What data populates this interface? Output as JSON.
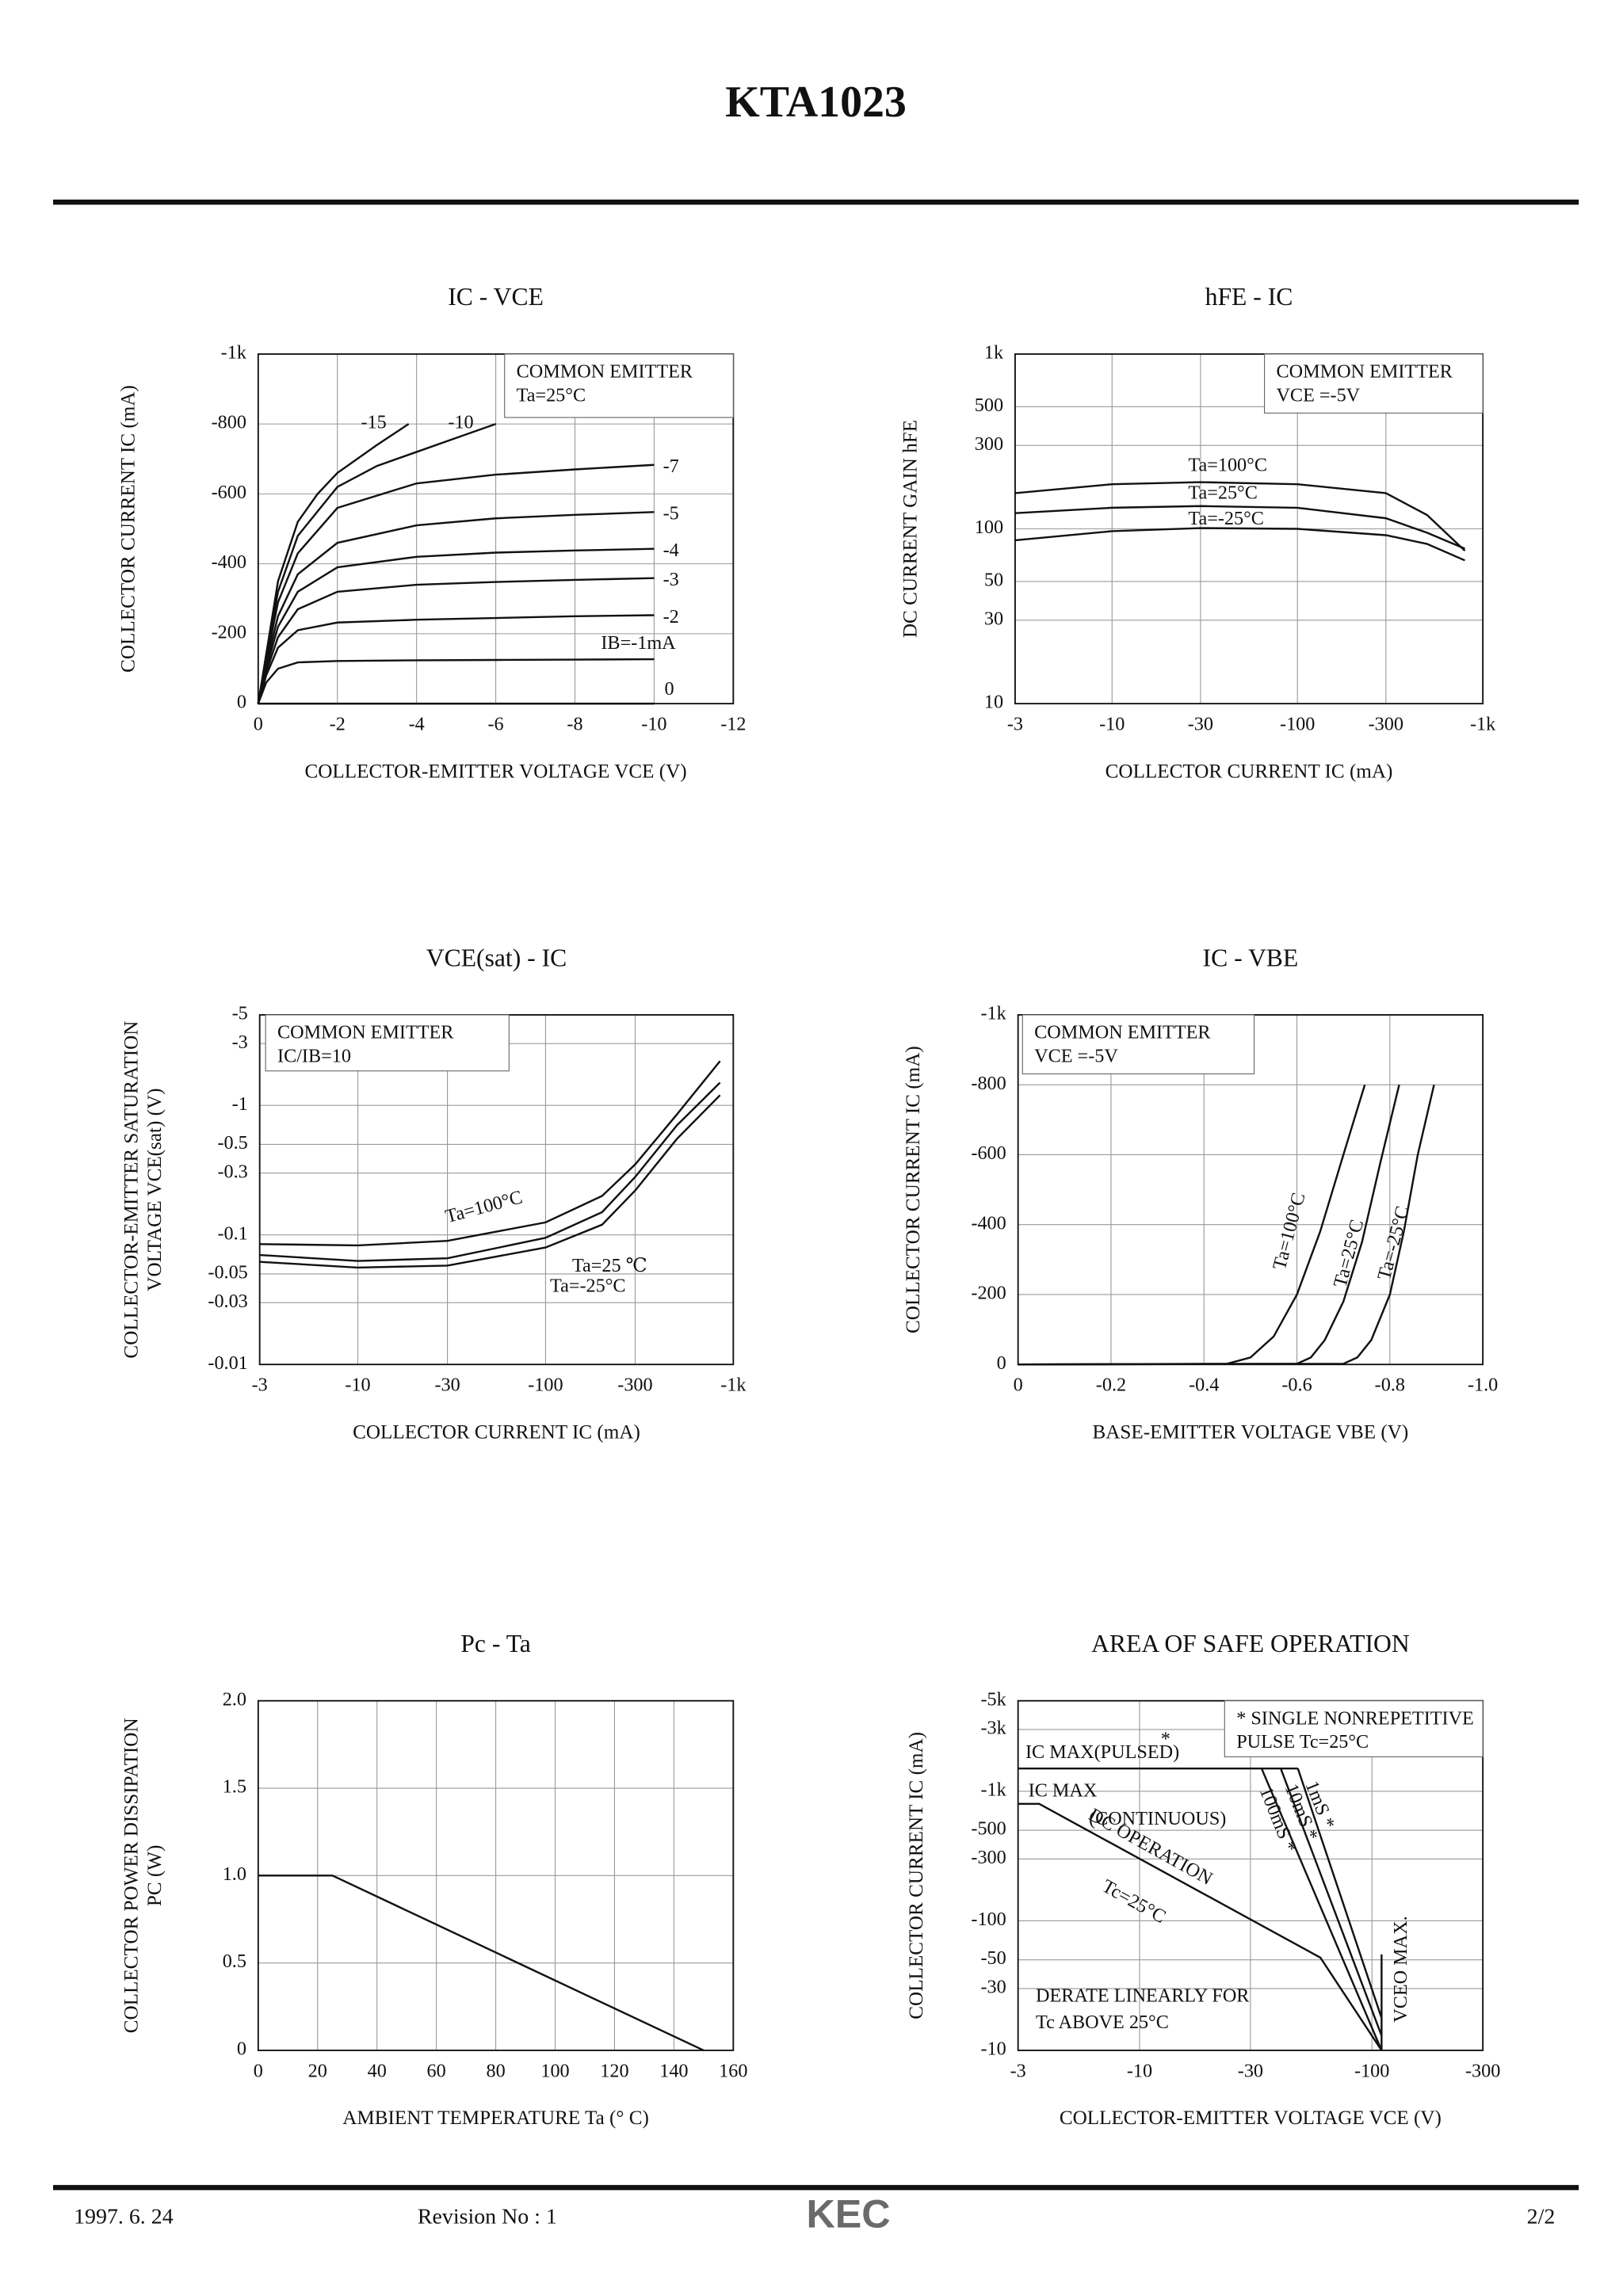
{
  "header": {
    "title": "KTA1023"
  },
  "footer": {
    "date": "1997. 6. 24",
    "revision": "Revision No : 1",
    "logo": "KEC",
    "page": "2/2"
  },
  "chart_data": [
    {
      "type": "line",
      "title": "IC - VCE",
      "xlabel": "COLLECTOR-EMITTER VOLTAGE VCE (V)",
      "ylabel": [
        "COLLECTOR CURRENT IC (mA)"
      ],
      "xscale": "linear",
      "yscale": "linear",
      "xlim": [
        0,
        -12
      ],
      "ylim": [
        0,
        -1000
      ],
      "xticks": [
        0,
        -2,
        -4,
        -6,
        -8,
        -10,
        -12
      ],
      "yticks": [
        0,
        -200,
        -400,
        -600,
        -800,
        {
          "value": -1000,
          "label": "-1k"
        }
      ],
      "grid": true,
      "color": "#111111",
      "notes": [
        "COMMON EMITTER",
        "Ta=25°C"
      ],
      "series": [
        {
          "name": "-15",
          "x": [
            0,
            -0.2,
            -0.5,
            -1,
            -1.5,
            -2,
            -3,
            -3.8
          ],
          "values": [
            0,
            -140,
            -350,
            -520,
            -600,
            -660,
            -740,
            -800
          ]
        },
        {
          "name": "-10",
          "x": [
            0,
            -0.2,
            -0.5,
            -1,
            -2,
            -3,
            -4,
            -5,
            -6
          ],
          "values": [
            0,
            -130,
            -320,
            -480,
            -620,
            -680,
            -720,
            -760,
            -800
          ]
        },
        {
          "name": "-7",
          "x": [
            0,
            -0.2,
            -0.5,
            -1,
            -2,
            -4,
            -6,
            -8,
            -10
          ],
          "values": [
            0,
            -120,
            -290,
            -430,
            -560,
            -630,
            -655,
            -670,
            -683
          ]
        },
        {
          "name": "-5",
          "x": [
            0,
            -0.2,
            -0.5,
            -1,
            -2,
            -4,
            -6,
            -8,
            -10
          ],
          "values": [
            0,
            -110,
            -250,
            -370,
            -460,
            -510,
            -530,
            -540,
            -548
          ]
        },
        {
          "name": "-4",
          "x": [
            0,
            -0.2,
            -0.5,
            -1,
            -2,
            -4,
            -6,
            -8,
            -10
          ],
          "values": [
            0,
            -100,
            -220,
            -320,
            -390,
            -420,
            -432,
            -438,
            -443
          ]
        },
        {
          "name": "-3",
          "x": [
            0,
            -0.2,
            -0.5,
            -1,
            -2,
            -4,
            -6,
            -8,
            -10
          ],
          "values": [
            0,
            -90,
            -190,
            -270,
            -320,
            -340,
            -348,
            -354,
            -359
          ]
        },
        {
          "name": "-2",
          "x": [
            0,
            -0.2,
            -0.5,
            -1,
            -2,
            -4,
            -6,
            -8,
            -10
          ],
          "values": [
            0,
            -80,
            -160,
            -210,
            -232,
            -240,
            -245,
            -250,
            -253
          ]
        },
        {
          "name": "IB=-1mA",
          "x": [
            0,
            -0.2,
            -0.5,
            -1,
            -2,
            -4,
            -6,
            -8,
            -10
          ],
          "values": [
            0,
            -60,
            -100,
            -118,
            -122,
            -124,
            -125,
            -126,
            -127
          ]
        },
        {
          "name": "0",
          "x": [
            0,
            -10
          ],
          "values": [
            0,
            0
          ]
        }
      ]
    },
    {
      "type": "line",
      "title": "hFE - IC",
      "xlabel": "COLLECTOR CURRENT IC (mA)",
      "ylabel": [
        "DC CURRENT GAIN hFE"
      ],
      "xscale": "log",
      "yscale": "log",
      "xlim": [
        -3,
        -1000
      ],
      "ylim": [
        10,
        1000
      ],
      "xticks": [
        -3,
        -10,
        -30,
        -100,
        -300,
        {
          "value": -1000,
          "label": "-1k"
        }
      ],
      "yticks": [
        10,
        30,
        50,
        100,
        300,
        500,
        {
          "value": 1000,
          "label": "1k"
        }
      ],
      "grid": true,
      "color": "#111111",
      "notes": [
        "COMMON EMITTER",
        "VCE =-5V"
      ],
      "series": [
        {
          "name": "Ta=100°C",
          "x": [
            -3,
            -10,
            -30,
            -100,
            -300,
            -500,
            -800
          ],
          "values": [
            160,
            180,
            185,
            180,
            160,
            120,
            75
          ]
        },
        {
          "name": "Ta=25°C",
          "x": [
            -3,
            -10,
            -30,
            -100,
            -300,
            -500,
            -800
          ],
          "values": [
            123,
            132,
            135,
            132,
            115,
            95,
            77
          ]
        },
        {
          "name": "Ta=-25°C",
          "x": [
            -3,
            -10,
            -30,
            -100,
            -300,
            -500,
            -800
          ],
          "values": [
            86,
            97,
            101,
            100,
            92,
            82,
            66
          ]
        }
      ]
    },
    {
      "type": "line",
      "title": "VCE(sat) - IC",
      "xlabel": "COLLECTOR CURRENT IC (mA)",
      "ylabel": [
        "COLLECTOR-EMITTER SATURATION",
        "VOLTAGE VCE(sat) (V)"
      ],
      "xscale": "log",
      "yscale": "log",
      "xlim": [
        -3,
        -1000
      ],
      "ylim": [
        -0.01,
        -5
      ],
      "xticks": [
        -3,
        -10,
        -30,
        -100,
        -300,
        {
          "value": -1000,
          "label": "-1k"
        }
      ],
      "yticks": [
        -0.01,
        -0.03,
        -0.05,
        -0.1,
        -0.3,
        -0.5,
        -1,
        -3,
        -5
      ],
      "grid": true,
      "color": "#111111",
      "notes": [
        "COMMON EMITTER",
        "IC/IB=10"
      ],
      "series": [
        {
          "name": "Ta=100°C",
          "x": [
            -3,
            -10,
            -30,
            -100,
            -200,
            -300,
            -500,
            -850
          ],
          "values": [
            -0.085,
            -0.083,
            -0.09,
            -0.125,
            -0.2,
            -0.35,
            -0.85,
            -2.2
          ]
        },
        {
          "name": "Ta=25 ℃",
          "x": [
            -3,
            -10,
            -30,
            -100,
            -200,
            -300,
            -500,
            -850
          ],
          "values": [
            -0.07,
            -0.063,
            -0.066,
            -0.095,
            -0.15,
            -0.28,
            -0.7,
            -1.5
          ]
        },
        {
          "name": "Ta=-25°C",
          "x": [
            -3,
            -10,
            -30,
            -100,
            -200,
            -300,
            -500,
            -850
          ],
          "values": [
            -0.062,
            -0.056,
            -0.058,
            -0.08,
            -0.12,
            -0.22,
            -0.55,
            -1.2
          ]
        }
      ]
    },
    {
      "type": "line",
      "title": "IC - VBE",
      "xlabel": "BASE-EMITTER VOLTAGE VBE (V)",
      "ylabel": [
        "COLLECTOR CURRENT IC (mA)"
      ],
      "xscale": "linear",
      "yscale": "linear",
      "xlim": [
        0,
        -1
      ],
      "ylim": [
        0,
        -1000
      ],
      "xticks": [
        0,
        -0.2,
        -0.4,
        -0.6,
        -0.8,
        {
          "value": -1,
          "label": "-1.0"
        }
      ],
      "yticks": [
        0,
        -200,
        -400,
        -600,
        -800,
        {
          "value": -1000,
          "label": "-1k"
        }
      ],
      "grid": true,
      "color": "#111111",
      "notes": [
        "COMMON EMITTER",
        "VCE =-5V"
      ],
      "series": [
        {
          "name": "Ta=100°C",
          "x": [
            0,
            -0.45,
            -0.5,
            -0.55,
            -0.6,
            -0.65,
            -0.7,
            -0.746
          ],
          "values": [
            0,
            -2,
            -20,
            -80,
            -200,
            -380,
            -600,
            -800
          ]
        },
        {
          "name": "Ta=25°C",
          "x": [
            0,
            -0.6,
            -0.63,
            -0.66,
            -0.7,
            -0.74,
            -0.78,
            -0.82
          ],
          "values": [
            0,
            -2,
            -20,
            -70,
            -180,
            -350,
            -580,
            -800
          ]
        },
        {
          "name": "Ta=-25°C",
          "x": [
            0,
            -0.7,
            -0.73,
            -0.76,
            -0.8,
            -0.83,
            -0.86,
            -0.895
          ],
          "values": [
            0,
            -2,
            -20,
            -70,
            -200,
            -380,
            -600,
            -800
          ]
        }
      ]
    },
    {
      "type": "line",
      "title": "Pc - Ta",
      "xlabel": "AMBIENT TEMPERATURE Ta (° C)",
      "ylabel": [
        "COLLECTOR POWER DISSIPATION",
        "PC (W)"
      ],
      "xscale": "linear",
      "yscale": "linear",
      "xlim": [
        0,
        160
      ],
      "ylim": [
        0,
        2
      ],
      "xticks": [
        0,
        20,
        40,
        60,
        80,
        100,
        120,
        140,
        160
      ],
      "yticks": [
        0,
        0.5,
        {
          "value": 1,
          "label": "1.0"
        },
        1.5,
        {
          "value": 2,
          "label": "2.0"
        }
      ],
      "grid": true,
      "color": "#111111",
      "series": [
        {
          "x": [
            0,
            25,
            150
          ],
          "values": [
            1,
            1,
            0
          ]
        }
      ]
    },
    {
      "type": "line",
      "title": "AREA OF SAFE OPERATION",
      "xlabel": "COLLECTOR-EMITTER VOLTAGE VCE (V)",
      "ylabel": [
        "COLLECTOR CURRENT IC (mA)"
      ],
      "xscale": "log",
      "yscale": "log",
      "xlim": [
        -3,
        -300
      ],
      "ylim": [
        -10,
        -5000
      ],
      "xticks": [
        -3,
        -10,
        -30,
        -100,
        -300
      ],
      "yticks": [
        -10,
        -30,
        -50,
        -100,
        -300,
        -500,
        {
          "value": -1000,
          "label": "-1k"
        },
        {
          "value": -3000,
          "label": "-3k"
        },
        {
          "value": -5000,
          "label": "-5k"
        }
      ],
      "grid": true,
      "color": "#111111",
      "notes": [
        "* SINGLE NONREPETITIVE",
        "PULSE Tc=25°C"
      ],
      "annotations": [
        "*",
        "IC MAX",
        "(CONTINUOUS)",
        "Tc=25°C",
        "DERATE LINEARLY FOR",
        "Tc ABOVE 25°C"
      ],
      "series": [
        {
          "name": "IC MAX(PULSED)",
          "x": [
            -3,
            -48
          ],
          "values": [
            -1500,
            -1500
          ]
        },
        {
          "name": "100mS *",
          "x": [
            -33.5,
            -110
          ],
          "values": [
            -1500,
            -10
          ]
        },
        {
          "name": "10mS *",
          "x": [
            -40.5,
            -110
          ],
          "values": [
            -1500,
            -13
          ]
        },
        {
          "name": "1mS *",
          "x": [
            -48,
            -110
          ],
          "values": [
            -1500,
            -17.8
          ]
        },
        {
          "name": "DC OPERATION",
          "x": [
            -3,
            -3.7,
            -60,
            -110
          ],
          "values": [
            -800,
            -800,
            -52,
            -10
          ]
        },
        {
          "name": "VCEO MAX.",
          "x": [
            -110,
            -110
          ],
          "values": [
            -10,
            -55
          ]
        }
      ]
    }
  ]
}
